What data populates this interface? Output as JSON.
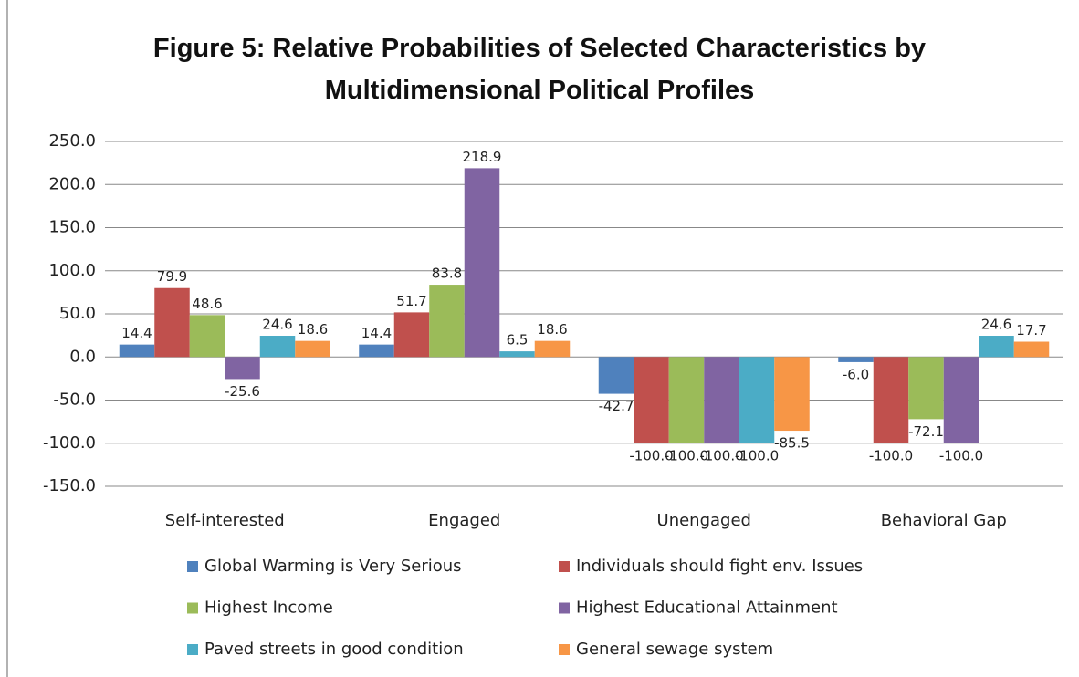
{
  "chart_data": {
    "type": "bar",
    "title": "Figure 5: Relative Probabilities of Selected Characteristics by Multidimensional Political Profiles",
    "categories": [
      "Self-interested",
      "Engaged",
      "Unengaged",
      "Behavioral Gap"
    ],
    "series": [
      {
        "name": "Global Warming is Very Serious",
        "color": "#4f81bd",
        "values": [
          14.4,
          14.4,
          -42.7,
          -6.0
        ],
        "value_labels": [
          "14.4",
          "14.4",
          "-42.7",
          "-6.0"
        ]
      },
      {
        "name": "Individuals should fight env. Issues",
        "color": "#c0504d",
        "values": [
          79.9,
          51.7,
          -100.0,
          -100.0
        ],
        "value_labels": [
          "79.9",
          "51.7",
          "-100.0",
          "-100.0"
        ]
      },
      {
        "name": "Highest Income",
        "color": "#9bbb59",
        "values": [
          48.6,
          83.8,
          -100.0,
          -72.1
        ],
        "value_labels": [
          "48.6",
          "83.8",
          "-100.0",
          "-72.1"
        ]
      },
      {
        "name": "Highest Educational Attainment",
        "color": "#8064a2",
        "values": [
          -25.6,
          218.9,
          -100.0,
          -100.0
        ],
        "value_labels": [
          "-25.6",
          "218.9",
          "-100.0",
          "-100.0"
        ]
      },
      {
        "name": "Paved streets in good condition",
        "color": "#4bacc6",
        "values": [
          24.6,
          6.5,
          -100.0,
          24.6
        ],
        "value_labels": [
          "24.6",
          "6.5",
          "-100.0",
          "24.6"
        ]
      },
      {
        "name": "General sewage system",
        "color": "#f79646",
        "values": [
          18.6,
          18.6,
          -85.5,
          17.7
        ],
        "value_labels": [
          "18.6",
          "18.6",
          "-85.5",
          "17.7"
        ]
      }
    ],
    "ylim": [
      -150,
      250
    ],
    "yticks": [
      {
        "value": -150,
        "label": "-150.0"
      },
      {
        "value": -100,
        "label": "-100.0"
      },
      {
        "value": -50,
        "label": "-50.0"
      },
      {
        "value": 0,
        "label": "0.0"
      },
      {
        "value": 50,
        "label": "50.0"
      },
      {
        "value": 100,
        "label": "100.0"
      },
      {
        "value": 150,
        "label": "150.0"
      },
      {
        "value": 200,
        "label": "200.0"
      },
      {
        "value": 250,
        "label": "250.0"
      }
    ],
    "grid": true,
    "legend": "bottom"
  }
}
